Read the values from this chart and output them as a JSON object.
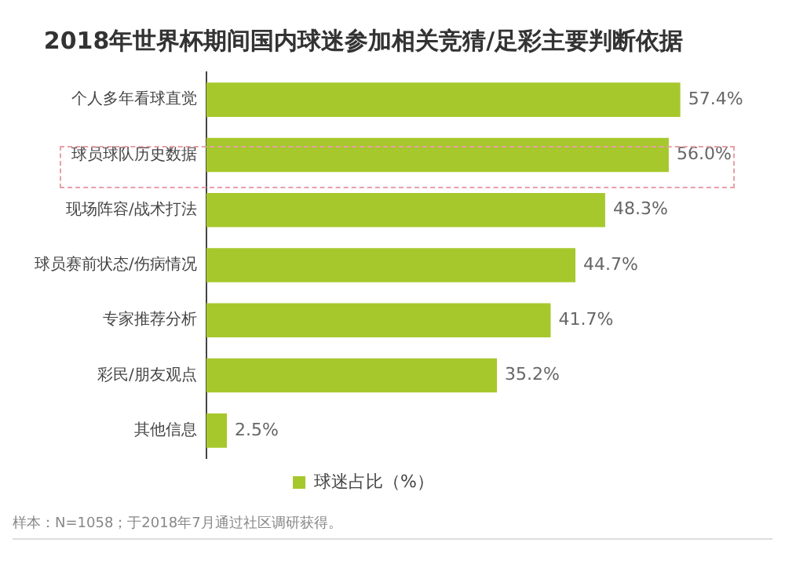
{
  "chart_data": {
    "type": "bar",
    "orientation": "horizontal",
    "title": "2018年世界杯期间国内球迷参加相关竞猜/足彩主要判断依据",
    "categories": [
      "个人多年看球直觉",
      "球员球队历史数据",
      "现场阵容/战术打法",
      "球员赛前状态/伤病情况",
      "专家推荐分析",
      "彩民/朋友观点",
      "其他信息"
    ],
    "series": [
      {
        "name": "球迷占比（%）",
        "color": "#a6c82c",
        "values": [
          57.4,
          56.0,
          48.3,
          44.7,
          41.7,
          35.2,
          2.5
        ],
        "value_labels": [
          "57.4%",
          "56.0%",
          "48.3%",
          "44.7%",
          "41.7%",
          "35.2%",
          "2.5%"
        ]
      }
    ],
    "legend": "bottom",
    "annotations": [
      "样本：N=1058；于2018年7月通过社区调研获得。"
    ]
  }
}
